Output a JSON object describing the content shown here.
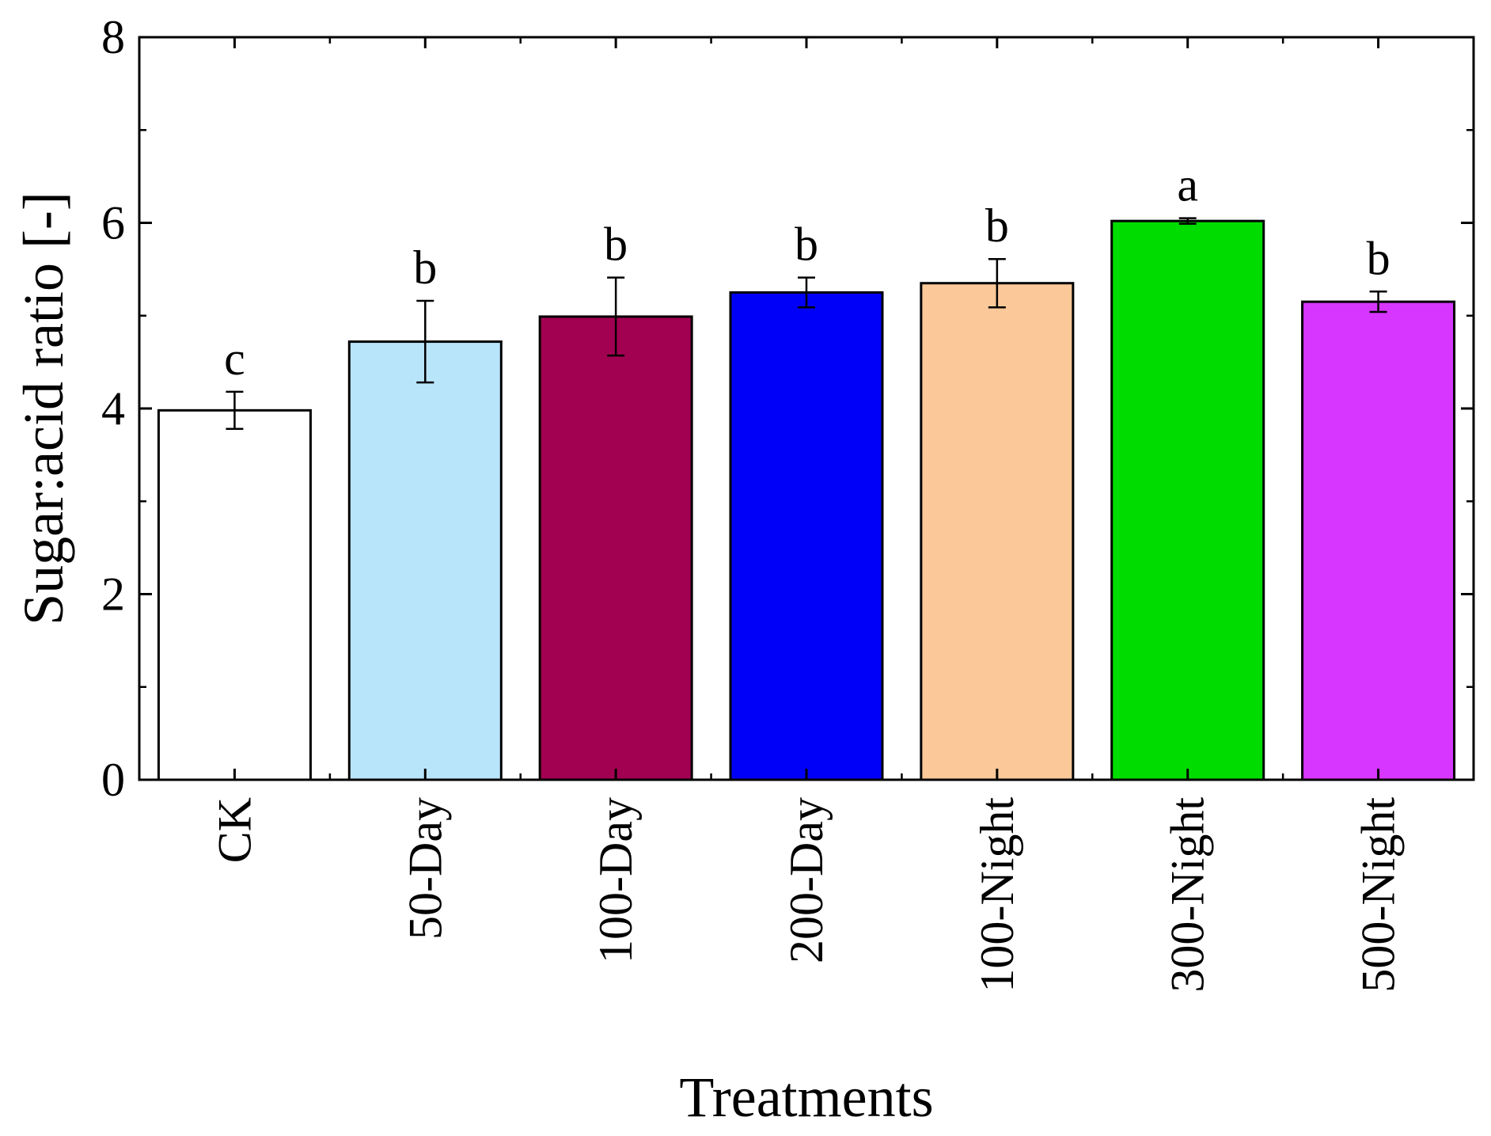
{
  "chart_data": {
    "type": "bar",
    "title": "",
    "xlabel": "Treatments",
    "ylabel": "Sugar:acid ratio [-]",
    "ylim": [
      0,
      8
    ],
    "yticks": [
      0,
      2,
      4,
      6,
      8
    ],
    "yticks_labels": [
      "0",
      "2",
      "4",
      "6",
      "8"
    ],
    "grid": false,
    "categories": [
      "CK",
      "50-Day",
      "100-Day",
      "200-Day",
      "100-Night",
      "300-Night",
      "500-Night"
    ],
    "values": [
      3.98,
      4.72,
      4.99,
      5.25,
      5.35,
      6.02,
      5.15
    ],
    "errors": [
      0.2,
      0.44,
      0.42,
      0.16,
      0.26,
      0.03,
      0.11
    ],
    "significance": [
      "c",
      "b",
      "b",
      "b",
      "b",
      "a",
      "b"
    ],
    "colors": [
      "#ffffff",
      "#b9e5fb",
      "#a20050",
      "#0000f8",
      "#fac899",
      "#00dc00",
      "#d636ff"
    ]
  }
}
